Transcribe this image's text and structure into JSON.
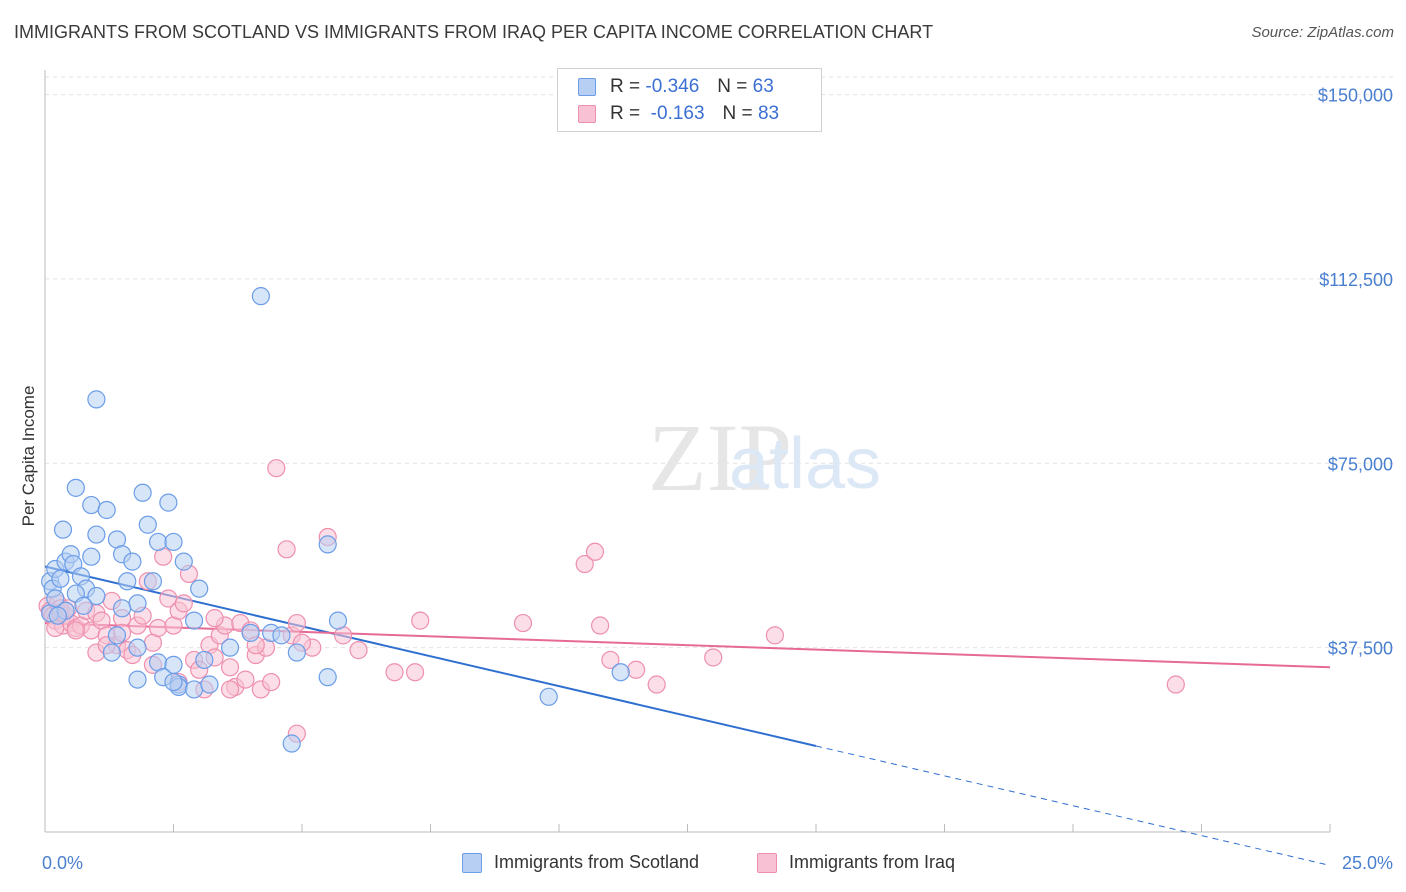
{
  "chart_data": {
    "type": "scatter",
    "title": "IMMIGRANTS FROM SCOTLAND VS IMMIGRANTS FROM IRAQ PER CAPITA INCOME CORRELATION CHART",
    "source": "Source: ZipAtlas.com",
    "xlabel": "",
    "ylabel": "Per Capita Income",
    "xlim": [
      0,
      25
    ],
    "ylim": [
      0,
      155000
    ],
    "x_tick_labels": [
      "0.0%",
      "25.0%"
    ],
    "y_ticks": [
      37500,
      75000,
      112500,
      150000
    ],
    "y_tick_labels": [
      "$37,500",
      "$75,000",
      "$112,500",
      "$150,000"
    ],
    "watermark": "ZIPatlas",
    "legend": {
      "rows": [
        {
          "r_label": "R =",
          "r_value": "-0.346",
          "n_label": "N =",
          "n_value": "63"
        },
        {
          "r_label": "R =",
          "r_value": "-0.163",
          "n_label": "N =",
          "n_value": "83"
        }
      ]
    },
    "series": [
      {
        "name": "Immigrants from Scotland",
        "color": "#6b9de8",
        "fill": "#b7cff3",
        "line_color": "#2f6fd0",
        "trend": {
          "x0": 0,
          "y0": 54000,
          "x1": 15,
          "y1": 17500,
          "dash_to_x": 25,
          "dash_to_y": -6800
        },
        "points": [
          [
            0.1,
            51000
          ],
          [
            0.2,
            53500
          ],
          [
            0.15,
            49500
          ],
          [
            0.3,
            51500
          ],
          [
            0.4,
            55000
          ],
          [
            0.5,
            56500
          ],
          [
            0.55,
            54500
          ],
          [
            0.7,
            52000
          ],
          [
            0.8,
            49500
          ],
          [
            0.6,
            48500
          ],
          [
            0.9,
            56000
          ],
          [
            1.0,
            48000
          ],
          [
            0.75,
            46000
          ],
          [
            0.35,
            61500
          ],
          [
            0.6,
            70000
          ],
          [
            0.9,
            66500
          ],
          [
            1.2,
            65500
          ],
          [
            1.0,
            60500
          ],
          [
            1.4,
            59500
          ],
          [
            1.5,
            56500
          ],
          [
            1.6,
            51000
          ],
          [
            1.7,
            55000
          ],
          [
            1.8,
            46500
          ],
          [
            1.9,
            69000
          ],
          [
            2.0,
            62500
          ],
          [
            2.1,
            51000
          ],
          [
            2.2,
            59000
          ],
          [
            2.4,
            67000
          ],
          [
            2.5,
            59000
          ],
          [
            2.7,
            55000
          ],
          [
            3.0,
            49500
          ],
          [
            1.5,
            45500
          ],
          [
            2.9,
            43000
          ],
          [
            1.4,
            40000
          ],
          [
            1.8,
            37500
          ],
          [
            1.3,
            36500
          ],
          [
            2.2,
            34500
          ],
          [
            2.5,
            34000
          ],
          [
            2.6,
            30000
          ],
          [
            2.3,
            31500
          ],
          [
            2.6,
            29500
          ],
          [
            2.5,
            30500
          ],
          [
            2.9,
            29000
          ],
          [
            3.1,
            35000
          ],
          [
            3.2,
            30000
          ],
          [
            3.6,
            37500
          ],
          [
            4.0,
            40500
          ],
          [
            4.4,
            40500
          ],
          [
            4.6,
            40000
          ],
          [
            4.9,
            36500
          ],
          [
            5.5,
            31500
          ],
          [
            5.7,
            43000
          ],
          [
            5.5,
            58500
          ],
          [
            4.2,
            109000
          ],
          [
            1.0,
            88000
          ],
          [
            4.8,
            18000
          ],
          [
            9.8,
            27500
          ],
          [
            11.2,
            32500
          ],
          [
            0.1,
            44500
          ],
          [
            0.2,
            47500
          ],
          [
            1.8,
            31000
          ],
          [
            0.4,
            45000
          ],
          [
            0.25,
            44000
          ]
        ]
      },
      {
        "name": "Immigrants from Iraq",
        "color": "#ee8fae",
        "fill": "#f8c2d4",
        "line_color": "#e66a96",
        "trend": {
          "x0": 0,
          "y0": 42500,
          "x1": 25,
          "y1": 33500
        },
        "points": [
          [
            0.05,
            46000
          ],
          [
            0.1,
            45000
          ],
          [
            0.15,
            44000
          ],
          [
            0.2,
            43000
          ],
          [
            0.25,
            46500
          ],
          [
            0.3,
            45500
          ],
          [
            0.35,
            42000
          ],
          [
            0.4,
            44000
          ],
          [
            0.5,
            42500
          ],
          [
            0.6,
            41500
          ],
          [
            0.7,
            42000
          ],
          [
            0.8,
            45000
          ],
          [
            0.9,
            41000
          ],
          [
            1.0,
            44500
          ],
          [
            1.1,
            43000
          ],
          [
            1.2,
            40000
          ],
          [
            1.3,
            47000
          ],
          [
            1.4,
            38000
          ],
          [
            1.5,
            43500
          ],
          [
            1.6,
            37000
          ],
          [
            1.7,
            36000
          ],
          [
            1.8,
            42000
          ],
          [
            1.9,
            44000
          ],
          [
            2.0,
            51000
          ],
          [
            2.1,
            38500
          ],
          [
            2.2,
            41500
          ],
          [
            2.3,
            56000
          ],
          [
            2.4,
            47500
          ],
          [
            2.5,
            42000
          ],
          [
            2.6,
            45000
          ],
          [
            2.7,
            46500
          ],
          [
            2.8,
            52500
          ],
          [
            2.9,
            35000
          ],
          [
            3.0,
            33000
          ],
          [
            3.1,
            29000
          ],
          [
            3.2,
            38000
          ],
          [
            3.3,
            35500
          ],
          [
            3.4,
            40000
          ],
          [
            3.5,
            42000
          ],
          [
            3.6,
            33500
          ],
          [
            3.7,
            29500
          ],
          [
            3.8,
            42500
          ],
          [
            3.9,
            31000
          ],
          [
            4.0,
            41000
          ],
          [
            4.1,
            36000
          ],
          [
            4.2,
            29000
          ],
          [
            4.3,
            37500
          ],
          [
            4.4,
            30500
          ],
          [
            4.5,
            74000
          ],
          [
            4.7,
            57500
          ],
          [
            4.8,
            40000
          ],
          [
            4.9,
            42500
          ],
          [
            5.2,
            37500
          ],
          [
            5.5,
            60000
          ],
          [
            5.8,
            40000
          ],
          [
            6.1,
            37000
          ],
          [
            6.8,
            32500
          ],
          [
            7.2,
            32500
          ],
          [
            7.3,
            43000
          ],
          [
            9.3,
            42500
          ],
          [
            10.5,
            54500
          ],
          [
            10.7,
            57000
          ],
          [
            10.8,
            42000
          ],
          [
            11.0,
            35000
          ],
          [
            11.5,
            33000
          ],
          [
            11.9,
            30000
          ],
          [
            13.0,
            35500
          ],
          [
            14.2,
            40000
          ],
          [
            22.0,
            30000
          ],
          [
            4.9,
            20000
          ],
          [
            3.3,
            43500
          ],
          [
            2.1,
            34000
          ],
          [
            1.0,
            36500
          ],
          [
            0.6,
            41000
          ],
          [
            1.5,
            40500
          ],
          [
            0.3,
            44500
          ],
          [
            0.45,
            45500
          ],
          [
            1.2,
            38000
          ],
          [
            3.6,
            29000
          ],
          [
            2.6,
            30500
          ],
          [
            5.0,
            38500
          ],
          [
            4.1,
            38000
          ],
          [
            0.2,
            41500
          ]
        ]
      }
    ]
  }
}
